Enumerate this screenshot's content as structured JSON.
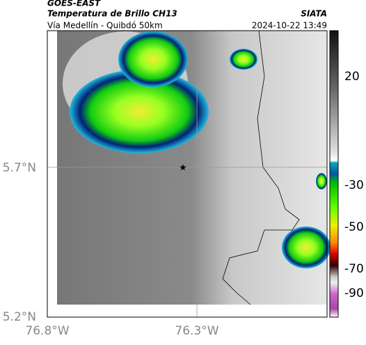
{
  "header": {
    "source": "GOES-EAST",
    "title": "Temperatura de Brillo CH13",
    "subtitle": "Vía Medellín - Quibdó 50km",
    "agency": "SIATA",
    "timestamp": "2024-10-22 13:49"
  },
  "axes": {
    "y_labels": [
      "5.7°N",
      "5.2°N"
    ],
    "x_labels": [
      "76.8°W",
      "76.3°W"
    ]
  },
  "colorbar": {
    "labels": [
      "20",
      "-30",
      "-50",
      "-70",
      "-90"
    ]
  }
}
